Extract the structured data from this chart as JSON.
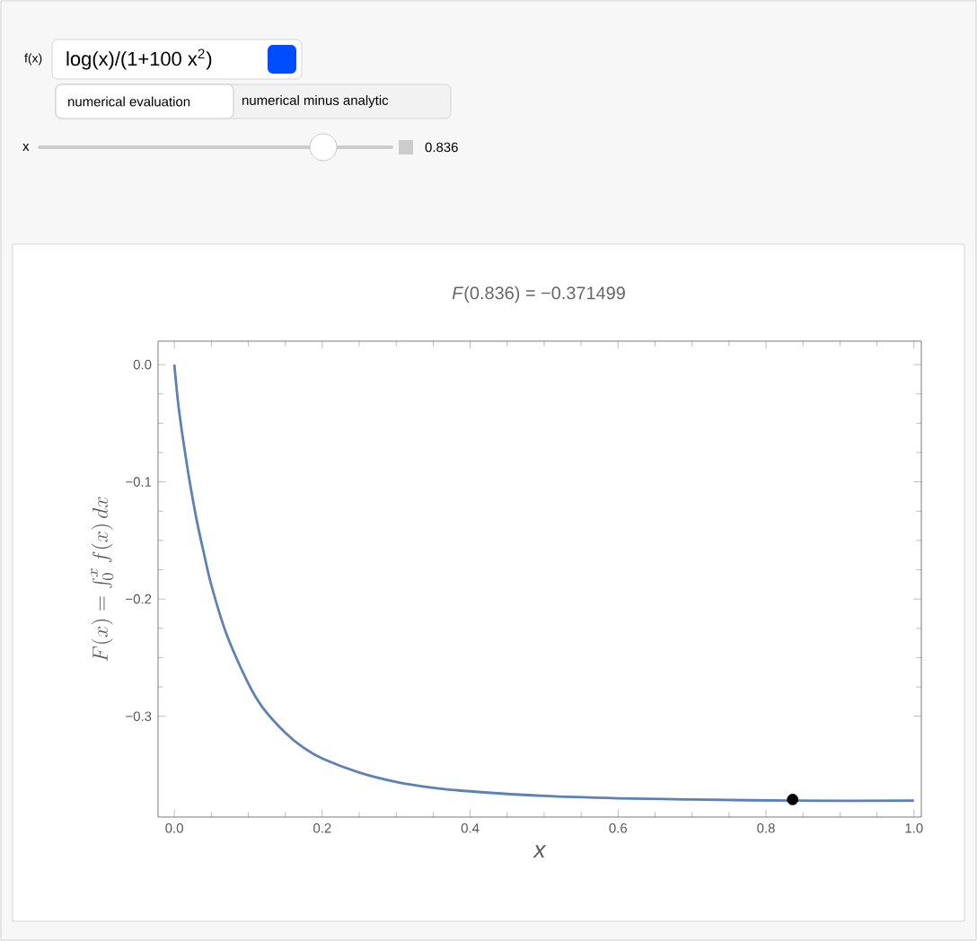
{
  "chart_data": {
    "type": "line",
    "title": "*F*(0.836)  =  −0.371499",
    "xlabel": "x",
    "ylabel": "F(x)=\\int_{0}^{x} f(x)\\,dx",
    "annotations": [
      "f(x)",
      "log(x)/(1+100 x$^{2}$)",
      "numerical evaluation",
      "numerical minus analytic",
      "x",
      "0.836"
    ],
    "series": [
      {
        "color": "#5e81b5",
        "x": [
          0,
          0.005,
          0.01,
          0.015,
          0.02,
          0.03,
          0.04,
          0.05,
          0.07,
          0.1,
          0.12,
          0.15,
          0.175,
          0.2,
          0.25,
          0.3,
          0.35,
          0.4,
          0.5,
          0.6,
          0.7,
          0.836,
          1.0
        ],
        "values": [
          0,
          -0.032,
          -0.056,
          -0.077,
          -0.097,
          -0.132,
          -0.161,
          -0.188,
          -0.229,
          -0.272,
          -0.293,
          -0.314,
          -0.327,
          -0.336,
          -0.348,
          -0.356,
          -0.361,
          -0.364,
          -0.368,
          -0.37,
          -0.371,
          -0.372,
          -0.372
        ]
      },
      {
        "type": "scatter",
        "color": "#000000",
        "marker": "circle",
        "x": [
          0.836
        ],
        "values": [
          -0.371
        ]
      }
    ],
    "xlim": [
      -0.022,
      1.01
    ],
    "ylim": [
      -0.386,
      0.02
    ],
    "xticks": [
      {
        "value": 0,
        "label": "0.0"
      },
      0.2,
      0.4,
      0.6,
      0.8,
      {
        "value": 1,
        "label": "1.0"
      }
    ],
    "yticks": [
      {
        "value": 0,
        "label": "0.0"
      },
      {
        "value": -0.1,
        "label": "−0.1"
      },
      {
        "value": -0.2,
        "label": "−0.2"
      },
      {
        "value": -0.3,
        "label": "−0.3"
      }
    ],
    "grid": false
  }
}
